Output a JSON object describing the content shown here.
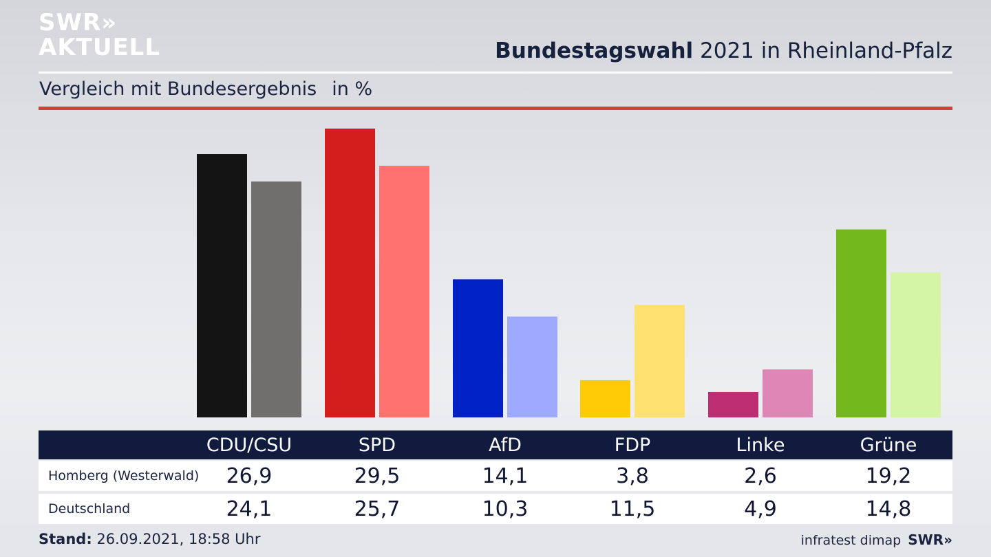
{
  "brand": {
    "logo_line1": "SWR»",
    "logo_line2": "AKTUELL"
  },
  "header": {
    "title_bold": "Bundestagswahl",
    "title_rest": " 2021 in Rheinland-Pfalz",
    "subtitle": "Vergleich mit Bundesergebnis",
    "unit": "in %"
  },
  "table": {
    "headers": [
      "CDU/CSU",
      "SPD",
      "AfD",
      "FDP",
      "Linke",
      "Grüne"
    ],
    "rows": [
      {
        "label": "Homberg (Westerwald)",
        "values": [
          "26,9",
          "29,5",
          "14,1",
          "3,8",
          "2,6",
          "19,2"
        ]
      },
      {
        "label": "Deutschland",
        "values": [
          "24,1",
          "25,7",
          "10,3",
          "11,5",
          "4,9",
          "14,8"
        ]
      }
    ]
  },
  "footer": {
    "stand_label": "Stand:",
    "stand_value": " 26.09.2021, 18:58 Uhr",
    "source": "infratest dimap",
    "brand": "SWR»"
  },
  "chart_data": {
    "type": "bar",
    "title": "Bundestagswahl 2021 in Rheinland-Pfalz",
    "subtitle": "Vergleich mit Bundesergebnis",
    "ylabel": "in %",
    "ylim": [
      0,
      29.5
    ],
    "grid": false,
    "categories": [
      "CDU/CSU",
      "SPD",
      "AfD",
      "FDP",
      "Linke",
      "Grüne"
    ],
    "series": [
      {
        "name": "Homberg (Westerwald)",
        "values": [
          26.9,
          29.5,
          14.1,
          3.8,
          2.6,
          19.2
        ]
      },
      {
        "name": "Deutschland",
        "values": [
          24.1,
          25.7,
          10.3,
          11.5,
          4.9,
          14.8
        ]
      }
    ],
    "colors": {
      "Homberg (Westerwald)": [
        "#141414",
        "#d41e1e",
        "#0021c4",
        "#ffcb05",
        "#bd2d72",
        "#73b91e"
      ],
      "Deutschland": [
        "#706f6d",
        "#ff7270",
        "#9eaaff",
        "#ffe171",
        "#de87b6",
        "#d4f5a5"
      ]
    }
  }
}
